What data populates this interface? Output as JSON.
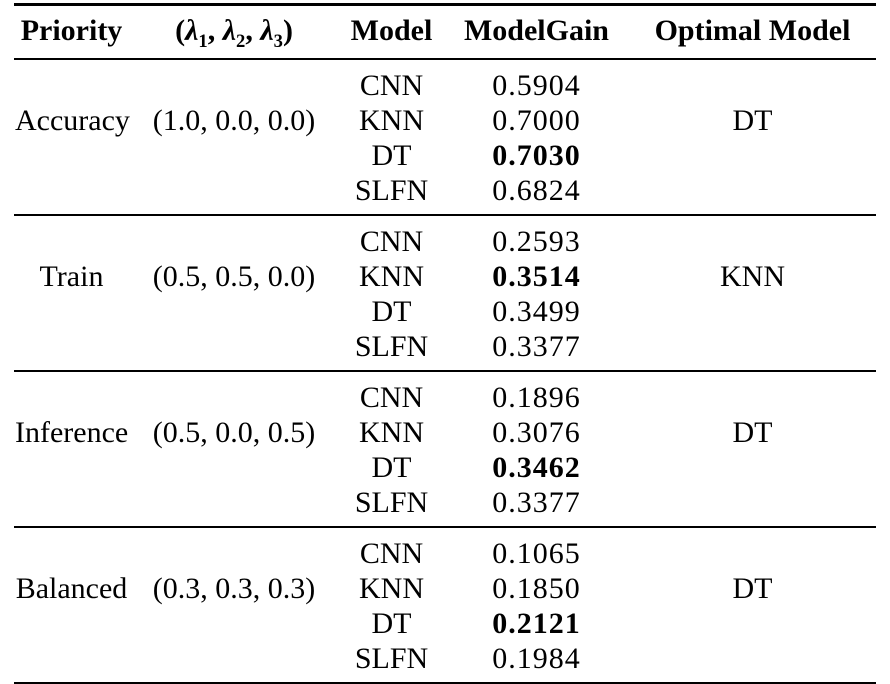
{
  "header": {
    "priority": "Priority",
    "lambda_tuple": {
      "open": "(",
      "lambda": "λ",
      "subs": [
        "1",
        "2",
        "3"
      ],
      "sep": ", ",
      "close": ")"
    },
    "model": "Model",
    "model_gain": "ModelGain",
    "optimal_model": "Optimal Model"
  },
  "groups": [
    {
      "priority": "Accuracy",
      "lambda_values": "(1.0, 0.0, 0.0)",
      "optimal_model": "DT",
      "rows": [
        {
          "model": "CNN",
          "gain": "0.5904",
          "best": false
        },
        {
          "model": "KNN",
          "gain": "0.7000",
          "best": false
        },
        {
          "model": "DT",
          "gain": "0.7030",
          "best": true
        },
        {
          "model": "SLFN",
          "gain": "0.6824",
          "best": false
        }
      ]
    },
    {
      "priority": "Train",
      "lambda_values": "(0.5, 0.5, 0.0)",
      "optimal_model": "KNN",
      "rows": [
        {
          "model": "CNN",
          "gain": "0.2593",
          "best": false
        },
        {
          "model": "KNN",
          "gain": "0.3514",
          "best": true
        },
        {
          "model": "DT",
          "gain": "0.3499",
          "best": false
        },
        {
          "model": "SLFN",
          "gain": "0.3377",
          "best": false
        }
      ]
    },
    {
      "priority": "Inference",
      "lambda_values": "(0.5, 0.0, 0.5)",
      "optimal_model": "DT",
      "rows": [
        {
          "model": "CNN",
          "gain": "0.1896",
          "best": false
        },
        {
          "model": "KNN",
          "gain": "0.3076",
          "best": false
        },
        {
          "model": "DT",
          "gain": "0.3462",
          "best": true
        },
        {
          "model": "SLFN",
          "gain": "0.3377",
          "best": false
        }
      ]
    },
    {
      "priority": "Balanced",
      "lambda_values": "(0.3, 0.3, 0.3)",
      "optimal_model": "DT",
      "rows": [
        {
          "model": "CNN",
          "gain": "0.1065",
          "best": false
        },
        {
          "model": "KNN",
          "gain": "0.1850",
          "best": false
        },
        {
          "model": "DT",
          "gain": "0.2121",
          "best": true
        },
        {
          "model": "SLFN",
          "gain": "0.1984",
          "best": false
        }
      ]
    }
  ]
}
